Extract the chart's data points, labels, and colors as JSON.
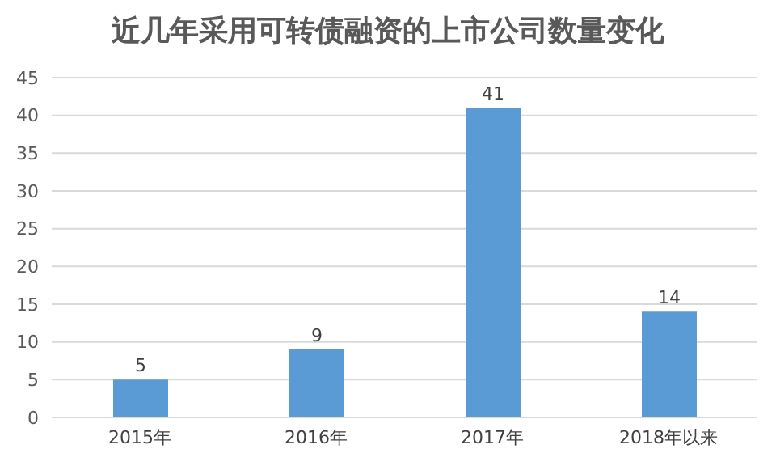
{
  "chart_data": {
    "type": "bar",
    "title": "近几年采用可转债融资的上市公司数量变化",
    "categories": [
      "2015年",
      "2016年",
      "2017年",
      "2018年以来"
    ],
    "values": [
      5,
      9,
      41,
      14
    ],
    "color": "#5b9bd5",
    "ylim": [
      0,
      45
    ],
    "yticks": [
      0,
      5,
      10,
      15,
      20,
      25,
      30,
      35,
      40,
      45
    ],
    "grid": "y",
    "data_labels": true,
    "legend": false
  }
}
